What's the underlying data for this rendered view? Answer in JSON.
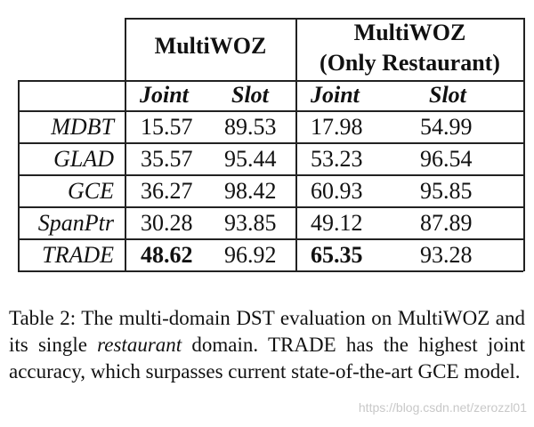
{
  "table": {
    "group_headers": [
      "MultiWOZ",
      "MultiWOZ",
      "(Only Restaurant)"
    ],
    "sub_headers": [
      "Joint",
      "Slot",
      "Joint",
      "Slot"
    ],
    "rows": [
      {
        "model": "MDBT",
        "mw_joint": "15.57",
        "mw_slot": "89.53",
        "r_joint": "17.98",
        "r_slot": "54.99"
      },
      {
        "model": "GLAD",
        "mw_joint": "35.57",
        "mw_slot": "95.44",
        "r_joint": "53.23",
        "r_slot": "96.54"
      },
      {
        "model": "GCE",
        "mw_joint": "36.27",
        "mw_slot": "98.42",
        "r_joint": "60.93",
        "r_slot": "95.85"
      },
      {
        "model": "SpanPtr",
        "mw_joint": "30.28",
        "mw_slot": "93.85",
        "r_joint": "49.12",
        "r_slot": "87.89"
      },
      {
        "model": "TRADE",
        "mw_joint": "48.62",
        "mw_slot": "96.92",
        "r_joint": "65.35",
        "r_slot": "93.28"
      }
    ]
  },
  "caption": {
    "part1": "Table 2:  The multi-domain DST evaluation on MultiWOZ and its single ",
    "emph": "restaurant",
    "part2": " domain.  TRADE has the highest joint accuracy, which surpasses current state-of-the-art GCE model."
  },
  "watermark": "https://blog.csdn.net/zerozzl01"
}
